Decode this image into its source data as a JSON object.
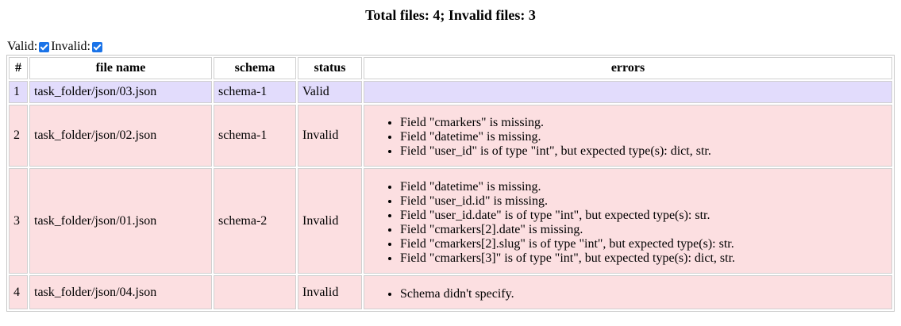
{
  "summary": "Total files: 4; Invalid files: 3",
  "filters": {
    "valid_label": "Valid:",
    "valid_checked": true,
    "invalid_label": "Invalid:",
    "invalid_checked": true,
    "checkbox_color": "#1a73e8"
  },
  "table": {
    "headers": [
      "#",
      "file name",
      "schema",
      "status",
      "errors"
    ],
    "rows": [
      {
        "num": "1",
        "file": "task_folder/json/03.json",
        "schema": "schema-1",
        "status": "Valid",
        "errors": []
      },
      {
        "num": "2",
        "file": "task_folder/json/02.json",
        "schema": "schema-1",
        "status": "Invalid",
        "errors": [
          "Field \"cmarkers\" is missing.",
          "Field \"datetime\" is missing.",
          "Field \"user_id\" is of type \"int\", but expected type(s): dict, str."
        ]
      },
      {
        "num": "3",
        "file": "task_folder/json/01.json",
        "schema": "schema-2",
        "status": "Invalid",
        "errors": [
          "Field \"datetime\" is missing.",
          "Field \"user_id.id\" is missing.",
          "Field \"user_id.date\" is of type \"int\", but expected type(s): str.",
          "Field \"cmarkers[2].date\" is missing.",
          "Field \"cmarkers[2].slug\" is of type \"int\", but expected type(s): str.",
          "Field \"cmarkers[3]\" is of type \"int\", but expected type(s): dict, str."
        ]
      },
      {
        "num": "4",
        "file": "task_folder/json/04.json",
        "schema": "",
        "status": "Invalid",
        "errors": [
          "Schema didn't specify."
        ]
      }
    ]
  },
  "colors": {
    "valid_row": "#e2dcfc",
    "invalid_row": "#fcdfe1"
  }
}
